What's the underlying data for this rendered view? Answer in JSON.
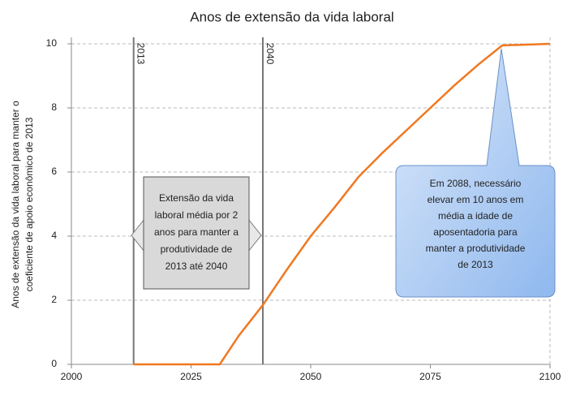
{
  "chart_data": {
    "type": "line",
    "title": "Anos de extensão da vida laboral",
    "ylabel_lines": [
      "Anos de extensão da vida laboral para manter o",
      "coeficiente de apoio econômico de 2013"
    ],
    "x": [
      2013,
      2031,
      2035,
      2040,
      2045,
      2050,
      2055,
      2060,
      2065,
      2070,
      2075,
      2080,
      2085,
      2090,
      2100
    ],
    "series": [
      {
        "color": "#f07820",
        "values": [
          0,
          0,
          0.9,
          1.85,
          2.95,
          4.0,
          4.9,
          5.85,
          6.6,
          7.3,
          8.0,
          8.7,
          9.35,
          9.95,
          10
        ]
      }
    ],
    "xlim": [
      2000,
      2100
    ],
    "xticks": [
      2000,
      2025,
      2050,
      2075,
      2100
    ],
    "ylim": [
      0,
      10
    ],
    "yticks": [
      0,
      2,
      4,
      6,
      8,
      10
    ],
    "grid": true,
    "reference_lines": [
      {
        "x": 2013
      },
      {
        "x": 2040
      }
    ],
    "annotations": [
      {
        "lines": [
          "Extensão da vida",
          "laboral média por 2",
          "anos para manter a",
          "produtividade de",
          "2013 até 2040"
        ]
      },
      {
        "lines": [
          "Em 2088, necessário",
          "elevar  em 10 anos em",
          "média a idade de",
          "aposentadoria para",
          "manter a produtividade",
          "de 2013"
        ]
      }
    ]
  }
}
